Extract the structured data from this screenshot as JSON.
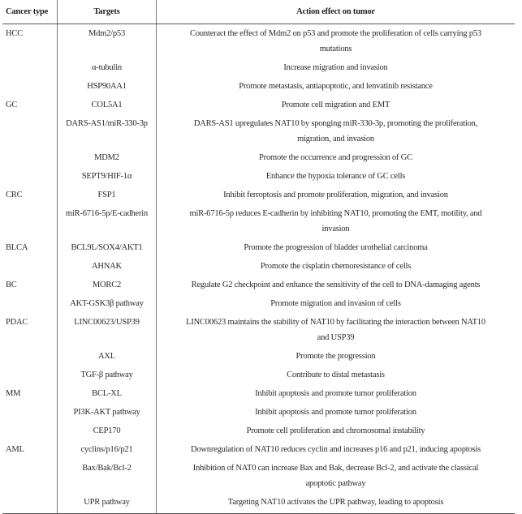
{
  "table": {
    "headers": [
      "Cancer type",
      "Targets",
      "Action effect on tumor"
    ],
    "rows": [
      {
        "cancer": "HCC",
        "target": "Mdm2/p53",
        "effect": "Counteract the effect of Mdm2 on p53 and promote the proliferation of cells carrying p53 mutations"
      },
      {
        "cancer": "",
        "target": "α-tubulin",
        "effect": "Increase migration and invasion"
      },
      {
        "cancer": "",
        "target": "HSP90AA1",
        "effect": "Promote metastasis, antiapoptotic, and lenvatinib resistance"
      },
      {
        "cancer": "GC",
        "target": "COL5A1",
        "effect": "Promote cell migration and EMT"
      },
      {
        "cancer": "",
        "target": "DARS-AS1/miR-330-3p",
        "effect": "DARS-AS1 upregulates NAT10 by sponging miR-330-3p, promoting the proliferation, migration, and invasion"
      },
      {
        "cancer": "",
        "target": "MDM2",
        "effect": "Promote the occurrence and progression of GC"
      },
      {
        "cancer": "",
        "target": "SEPT9/HIF-1α",
        "effect": "Enhance the hypoxia tolerance of GC cells"
      },
      {
        "cancer": "CRC",
        "target": "FSP1",
        "effect": "Inhibit ferroptosis and promote proliferation, migration, and invasion"
      },
      {
        "cancer": "",
        "target": "miR-6716-5p/E-cadherin",
        "effect": "miR-6716-5p reduces E-cadherin by inhibiting NAT10, promoting the EMT, motility, and invasion"
      },
      {
        "cancer": "BLCA",
        "target": "BCL9L/SOX4/AKT1",
        "effect": "Promote the progression of bladder urothelial carcinoma"
      },
      {
        "cancer": "",
        "target": "AHNAK",
        "effect": "Promote the cisplatin chemoresistance of cells"
      },
      {
        "cancer": "BC",
        "target": "MORC2",
        "effect": "Regulate G2 checkpoint and enhance the sensitivity of the cell to DNA-damaging agents"
      },
      {
        "cancer": "",
        "target": "AKT-GSK3β pathway",
        "effect": "Promote migration and invasion of cells"
      },
      {
        "cancer": "PDAC",
        "target": "LINC00623/USP39",
        "effect": "LINC00623 maintains the stability of NAT10 by facilitating the interaction between NAT10 and USP39"
      },
      {
        "cancer": "",
        "target": "AXL",
        "effect": "Promote the progression"
      },
      {
        "cancer": "",
        "target": "TGF-β pathway",
        "effect": "Contribute to distal metastasis"
      },
      {
        "cancer": "MM",
        "target": "BCL-XL",
        "effect": "Inhibit apoptosis and promote tumor proliferation"
      },
      {
        "cancer": "",
        "target": "PI3K-AKT pathway",
        "effect": "Inhibit apoptosis and promote tumor proliferation"
      },
      {
        "cancer": "",
        "target": "CEP170",
        "effect": "Promote cell proliferation and chromosomal instability"
      },
      {
        "cancer": "AML",
        "target": "cyclins/p16/p21",
        "effect": "Downregulation of NAT10 reduces cyclin and increases p16 and p21, inducing apoptosis"
      },
      {
        "cancer": "",
        "target": "Bax/Bak/Bcl-2",
        "effect": "Inhibition of NAT0 can increase Bax and Bak, decrease Bcl-2, and activate the classical apoptotic pathway"
      },
      {
        "cancer": "",
        "target": "UPR pathway",
        "effect": "Targeting NAT10 activates the UPR pathway, leading to apoptosis"
      }
    ]
  }
}
